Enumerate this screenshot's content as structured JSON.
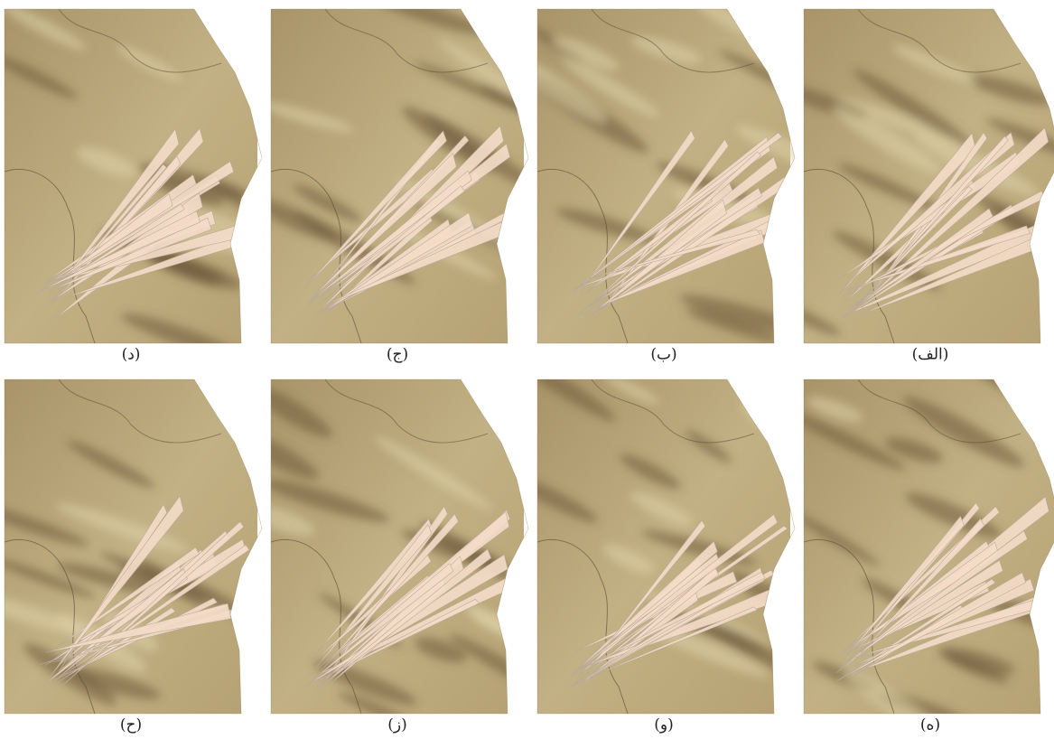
{
  "panels": [
    {
      "label": "(الف)"
    },
    {
      "label": "(ب)"
    },
    {
      "label": "(ج)"
    },
    {
      "label": "(د)"
    },
    {
      "label": "(ه)"
    },
    {
      "label": "(و)"
    },
    {
      "label": "(ز)"
    },
    {
      "label": "(ح)"
    }
  ]
}
